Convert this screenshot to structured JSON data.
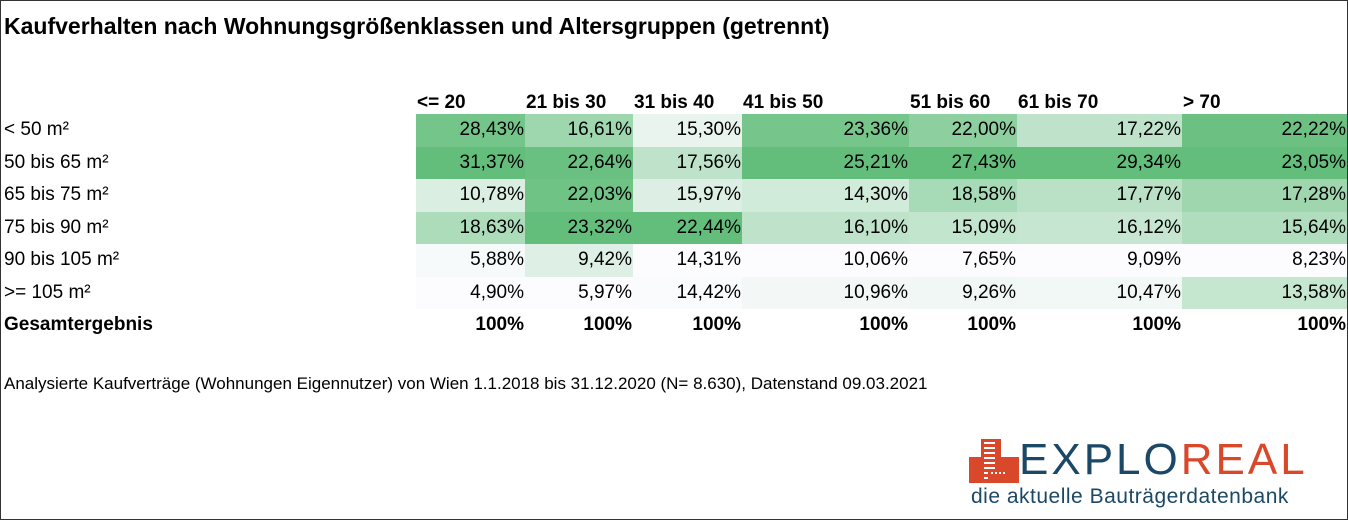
{
  "chart_data": {
    "type": "heatmap",
    "title": "Kaufverhalten nach Wohnungsgrößenklassen und Altersgruppen (getrennt)",
    "columns": [
      "<= 20",
      "21 bis 30",
      "31 bis 40",
      "41 bis 50",
      "51 bis 60",
      "61 bis 70",
      "> 70"
    ],
    "rows": [
      "< 50 m²",
      "50 bis 65 m²",
      "65 bis 75 m²",
      "75 bis 90 m²",
      "90 bis 105 m²",
      ">= 105 m²"
    ],
    "values": [
      [
        28.43,
        16.61,
        15.3,
        23.36,
        22.0,
        17.22,
        22.22
      ],
      [
        31.37,
        22.64,
        17.56,
        25.21,
        27.43,
        29.34,
        23.05
      ],
      [
        10.78,
        22.03,
        15.97,
        14.3,
        18.58,
        17.77,
        17.28
      ],
      [
        18.63,
        23.32,
        22.44,
        16.1,
        15.09,
        16.12,
        15.64
      ],
      [
        5.88,
        9.42,
        14.31,
        10.06,
        7.65,
        9.09,
        8.23
      ],
      [
        4.9,
        5.97,
        14.42,
        10.96,
        9.26,
        10.47,
        13.58
      ]
    ],
    "total_label": "Gesamtergebnis",
    "totals": [
      "100%",
      "100%",
      "100%",
      "100%",
      "100%",
      "100%",
      "100%"
    ],
    "color_scale": {
      "low": "#FCFCFF",
      "high": "#63BE7B",
      "scope": "per-column"
    }
  },
  "note": "Analysierte Kaufverträge (Wohnungen Eigennutzer) von Wien 1.1.2018 bis 31.12.2020 (N= 8.630), Datenstand 09.03.2021",
  "logo": {
    "part1": "EXPLO",
    "part2": "REAL",
    "tagline": "die aktuelle Bauträgerdatenbank",
    "colors": {
      "navy": "#1B4866",
      "red": "#D9482B"
    }
  }
}
